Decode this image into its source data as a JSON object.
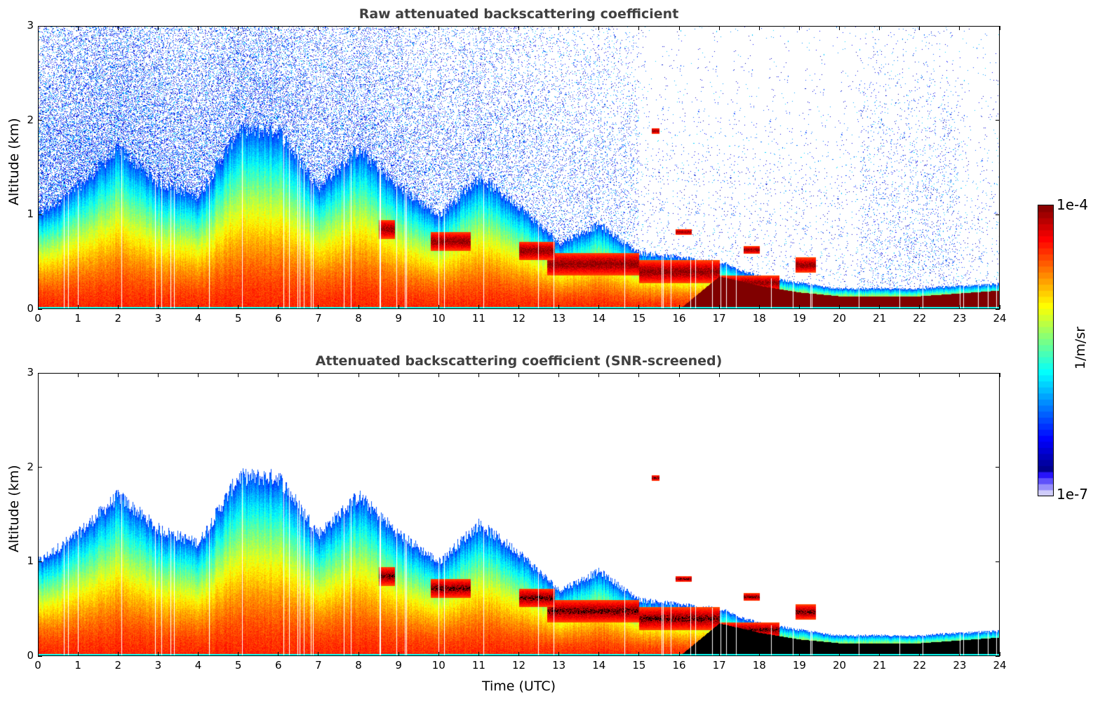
{
  "chart_data": [
    {
      "type": "heatmap",
      "title": "Raw attenuated backscattering coefficient",
      "xlabel": "",
      "ylabel": "Altitude (km)",
      "xlim": [
        0,
        24
      ],
      "ylim": [
        0,
        3
      ],
      "xticks": [
        "0",
        "1",
        "2",
        "3",
        "4",
        "5",
        "6",
        "7",
        "8",
        "9",
        "10",
        "11",
        "12",
        "13",
        "14",
        "15",
        "16",
        "17",
        "18",
        "19",
        "20",
        "21",
        "22",
        "23",
        "24"
      ],
      "yticks": [
        "0",
        "1",
        "2",
        "3"
      ],
      "screened": false
    },
    {
      "type": "heatmap",
      "title": "Attenuated backscattering coefficient (SNR-screened)",
      "xlabel": "Time (UTC)",
      "ylabel": "Altitude (km)",
      "xlim": [
        0,
        24
      ],
      "ylim": [
        0,
        3
      ],
      "xticks": [
        "0",
        "1",
        "2",
        "3",
        "4",
        "5",
        "6",
        "7",
        "8",
        "9",
        "10",
        "11",
        "12",
        "13",
        "14",
        "15",
        "16",
        "17",
        "18",
        "19",
        "20",
        "21",
        "22",
        "23",
        "24"
      ],
      "yticks": [
        "0",
        "1",
        "2",
        "3"
      ],
      "screened": true
    }
  ],
  "profile": {
    "hours": [
      0,
      1,
      2,
      3,
      4,
      5,
      6,
      7,
      8,
      9,
      10,
      11,
      12,
      13,
      14,
      15,
      16,
      17,
      18,
      19,
      20,
      21,
      22,
      23,
      24
    ],
    "aerosol_top_km": [
      1.0,
      1.3,
      1.7,
      1.35,
      1.2,
      1.9,
      1.9,
      1.3,
      1.7,
      1.3,
      1.0,
      1.4,
      1.1,
      0.7,
      0.9,
      0.6,
      0.55,
      0.5,
      0.35,
      0.28,
      0.22,
      0.22,
      0.22,
      0.25,
      0.27
    ],
    "dense_layer_top_km": [
      0,
      0,
      0,
      0,
      0,
      0,
      0,
      0,
      0,
      0,
      0,
      0,
      0,
      0,
      0,
      0,
      0,
      0.35,
      0.25,
      0.18,
      0.14,
      0.14,
      0.14,
      0.17,
      0.2
    ],
    "clouds": [
      {
        "t0": 8.5,
        "t1": 8.9,
        "z": 0.85,
        "dz": 0.1
      },
      {
        "t0": 9.8,
        "t1": 10.8,
        "z": 0.72,
        "dz": 0.1
      },
      {
        "t0": 12.0,
        "t1": 12.9,
        "z": 0.62,
        "dz": 0.1
      },
      {
        "t0": 12.7,
        "t1": 15.0,
        "z": 0.48,
        "dz": 0.12
      },
      {
        "t0": 15.0,
        "t1": 17.0,
        "z": 0.4,
        "dz": 0.12
      },
      {
        "t0": 17.0,
        "t1": 18.5,
        "z": 0.28,
        "dz": 0.08
      },
      {
        "t0": 18.9,
        "t1": 19.4,
        "z": 0.47,
        "dz": 0.08
      },
      {
        "t0": 15.9,
        "t1": 16.3,
        "z": 0.82,
        "dz": 0.03
      },
      {
        "t0": 17.6,
        "t1": 18.0,
        "z": 0.63,
        "dz": 0.04
      },
      {
        "t0": 15.3,
        "t1": 15.5,
        "z": 1.89,
        "dz": 0.03
      }
    ]
  },
  "colorbar": {
    "label": "1/m/sr",
    "max_label": "1e-4",
    "min_label": "1e-7",
    "range_log10": [
      -7,
      -4
    ],
    "colormap": "jet"
  }
}
